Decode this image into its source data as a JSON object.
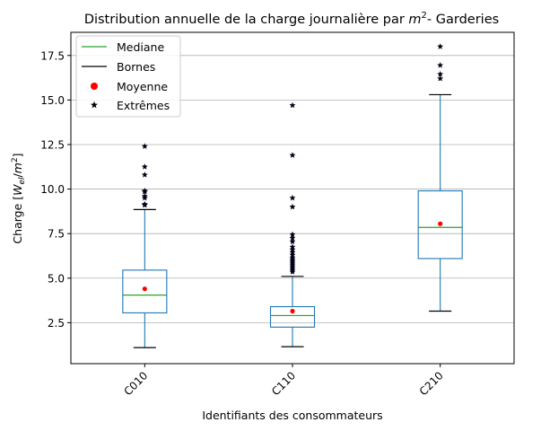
{
  "chart_data": {
    "type": "box",
    "title_main": "Distribution annuelle de la charge journalière par ",
    "title_unit_base": "m",
    "title_unit_exp": "2",
    "title_suffix": "- Garderies",
    "xlabel": "Identifiants des consommateurs",
    "ylabel_prefix": "Charge [",
    "ylabel_var": "W",
    "ylabel_sub": "el",
    "ylabel_sep": "/",
    "ylabel_unit": "m",
    "ylabel_exp": "2",
    "ylabel_suffix": "]",
    "ylim": [
      0.2,
      18.8
    ],
    "yticks": [
      2.5,
      5.0,
      7.5,
      10.0,
      12.5,
      15.0,
      17.5
    ],
    "ytick_labels": [
      "2.5",
      "5.0",
      "7.5",
      "10.0",
      "12.5",
      "15.0",
      "17.5"
    ],
    "grid": "y",
    "legend_position": "top-left",
    "legend": [
      {
        "label": "Mediane",
        "kind": "line",
        "color": "#2ca02c"
      },
      {
        "label": "Bornes",
        "kind": "line",
        "color": "#000000"
      },
      {
        "label": "Moyenne",
        "kind": "dot",
        "color": "#ff0000"
      },
      {
        "label": "Extrêmes",
        "kind": "star",
        "color": "#000000"
      }
    ],
    "categories": [
      "C010",
      "C110",
      "C210"
    ],
    "boxes": [
      {
        "name": "C010",
        "whisker_low": 1.1,
        "q1": 3.05,
        "median": 4.05,
        "q3": 5.45,
        "whisker_high": 8.85,
        "mean": 4.4,
        "outliers": [
          9.1,
          9.15,
          9.5,
          9.6,
          9.85,
          9.9,
          10.8,
          11.25,
          12.4
        ]
      },
      {
        "name": "C110",
        "whisker_low": 1.15,
        "q1": 2.25,
        "median": 2.9,
        "q3": 3.4,
        "whisker_high": 5.1,
        "mean": 3.15,
        "outliers": [
          5.35,
          5.45,
          5.55,
          5.65,
          5.75,
          5.85,
          5.95,
          6.05,
          6.15,
          6.3,
          6.45,
          6.6,
          6.75,
          7.05,
          7.25,
          7.45,
          9.0,
          9.5,
          11.9,
          14.7
        ]
      },
      {
        "name": "C210",
        "whisker_low": 3.15,
        "q1": 6.1,
        "median": 7.85,
        "q3": 9.9,
        "whisker_high": 15.3,
        "mean": 8.05,
        "outliers": [
          16.2,
          16.45,
          16.95,
          18.0
        ]
      }
    ],
    "colors": {
      "box": "#1f77b4",
      "median": "#2ca02c",
      "mean": "#ff0000",
      "outlier": "#000000",
      "grid": "#b0b0b0"
    }
  }
}
